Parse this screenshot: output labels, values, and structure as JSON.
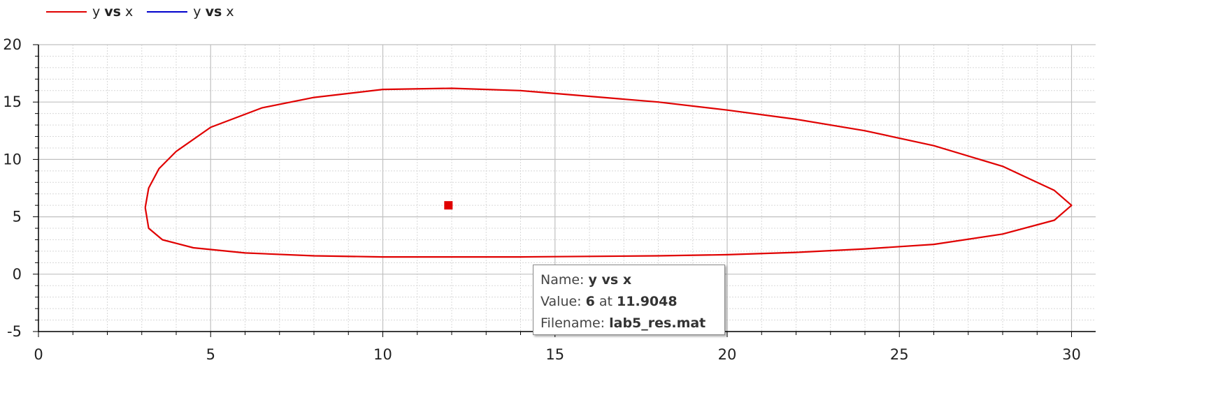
{
  "legend": [
    {
      "pre": "y ",
      "bold": "vs",
      "post": " x",
      "color": "#e00000"
    },
    {
      "pre": "y ",
      "bold": "vs",
      "post": " x",
      "color": "#0000cc"
    }
  ],
  "tooltip": {
    "name_label": "Name:",
    "name_value": "y vs x",
    "value_label": "Value:",
    "value_y": "6",
    "value_at": "at",
    "value_x": "11.9048",
    "file_label": "Filename:",
    "file_value": "lab5_res.mat"
  },
  "chart_data": {
    "type": "line",
    "title": "",
    "xlabel": "",
    "ylabel": "",
    "xlim": [
      0,
      30.7
    ],
    "ylim": [
      -5,
      20
    ],
    "xticks": [
      0,
      5,
      10,
      15,
      20,
      25,
      30
    ],
    "yticks": [
      -5,
      0,
      5,
      10,
      15,
      20
    ],
    "grid": true,
    "legend_position": "top-left",
    "series": [
      {
        "name": "y vs x",
        "color": "#e00000",
        "x": [
          3.1,
          3.2,
          3.5,
          4.0,
          5.0,
          6.5,
          8.0,
          10.0,
          12.0,
          14.0,
          16.0,
          18.0,
          20.0,
          22.0,
          24.0,
          26.0,
          28.0,
          29.5,
          30.0,
          29.5,
          28.0,
          26.0,
          24.0,
          22.0,
          20.0,
          18.0,
          16.0,
          14.0,
          12.0,
          10.0,
          8.0,
          6.0,
          4.5,
          3.6,
          3.2,
          3.1
        ],
        "y": [
          5.8,
          7.5,
          9.2,
          10.7,
          12.8,
          14.5,
          15.4,
          16.1,
          16.2,
          16.0,
          15.5,
          15.0,
          14.3,
          13.5,
          12.5,
          11.2,
          9.4,
          7.3,
          6.0,
          4.7,
          3.5,
          2.6,
          2.2,
          1.9,
          1.7,
          1.6,
          1.55,
          1.5,
          1.5,
          1.5,
          1.6,
          1.85,
          2.3,
          3.0,
          4.0,
          5.8
        ]
      },
      {
        "name": "y vs x",
        "color": "#e00000",
        "marker": "square",
        "x": [
          11.9048
        ],
        "y": [
          6
        ]
      }
    ]
  }
}
